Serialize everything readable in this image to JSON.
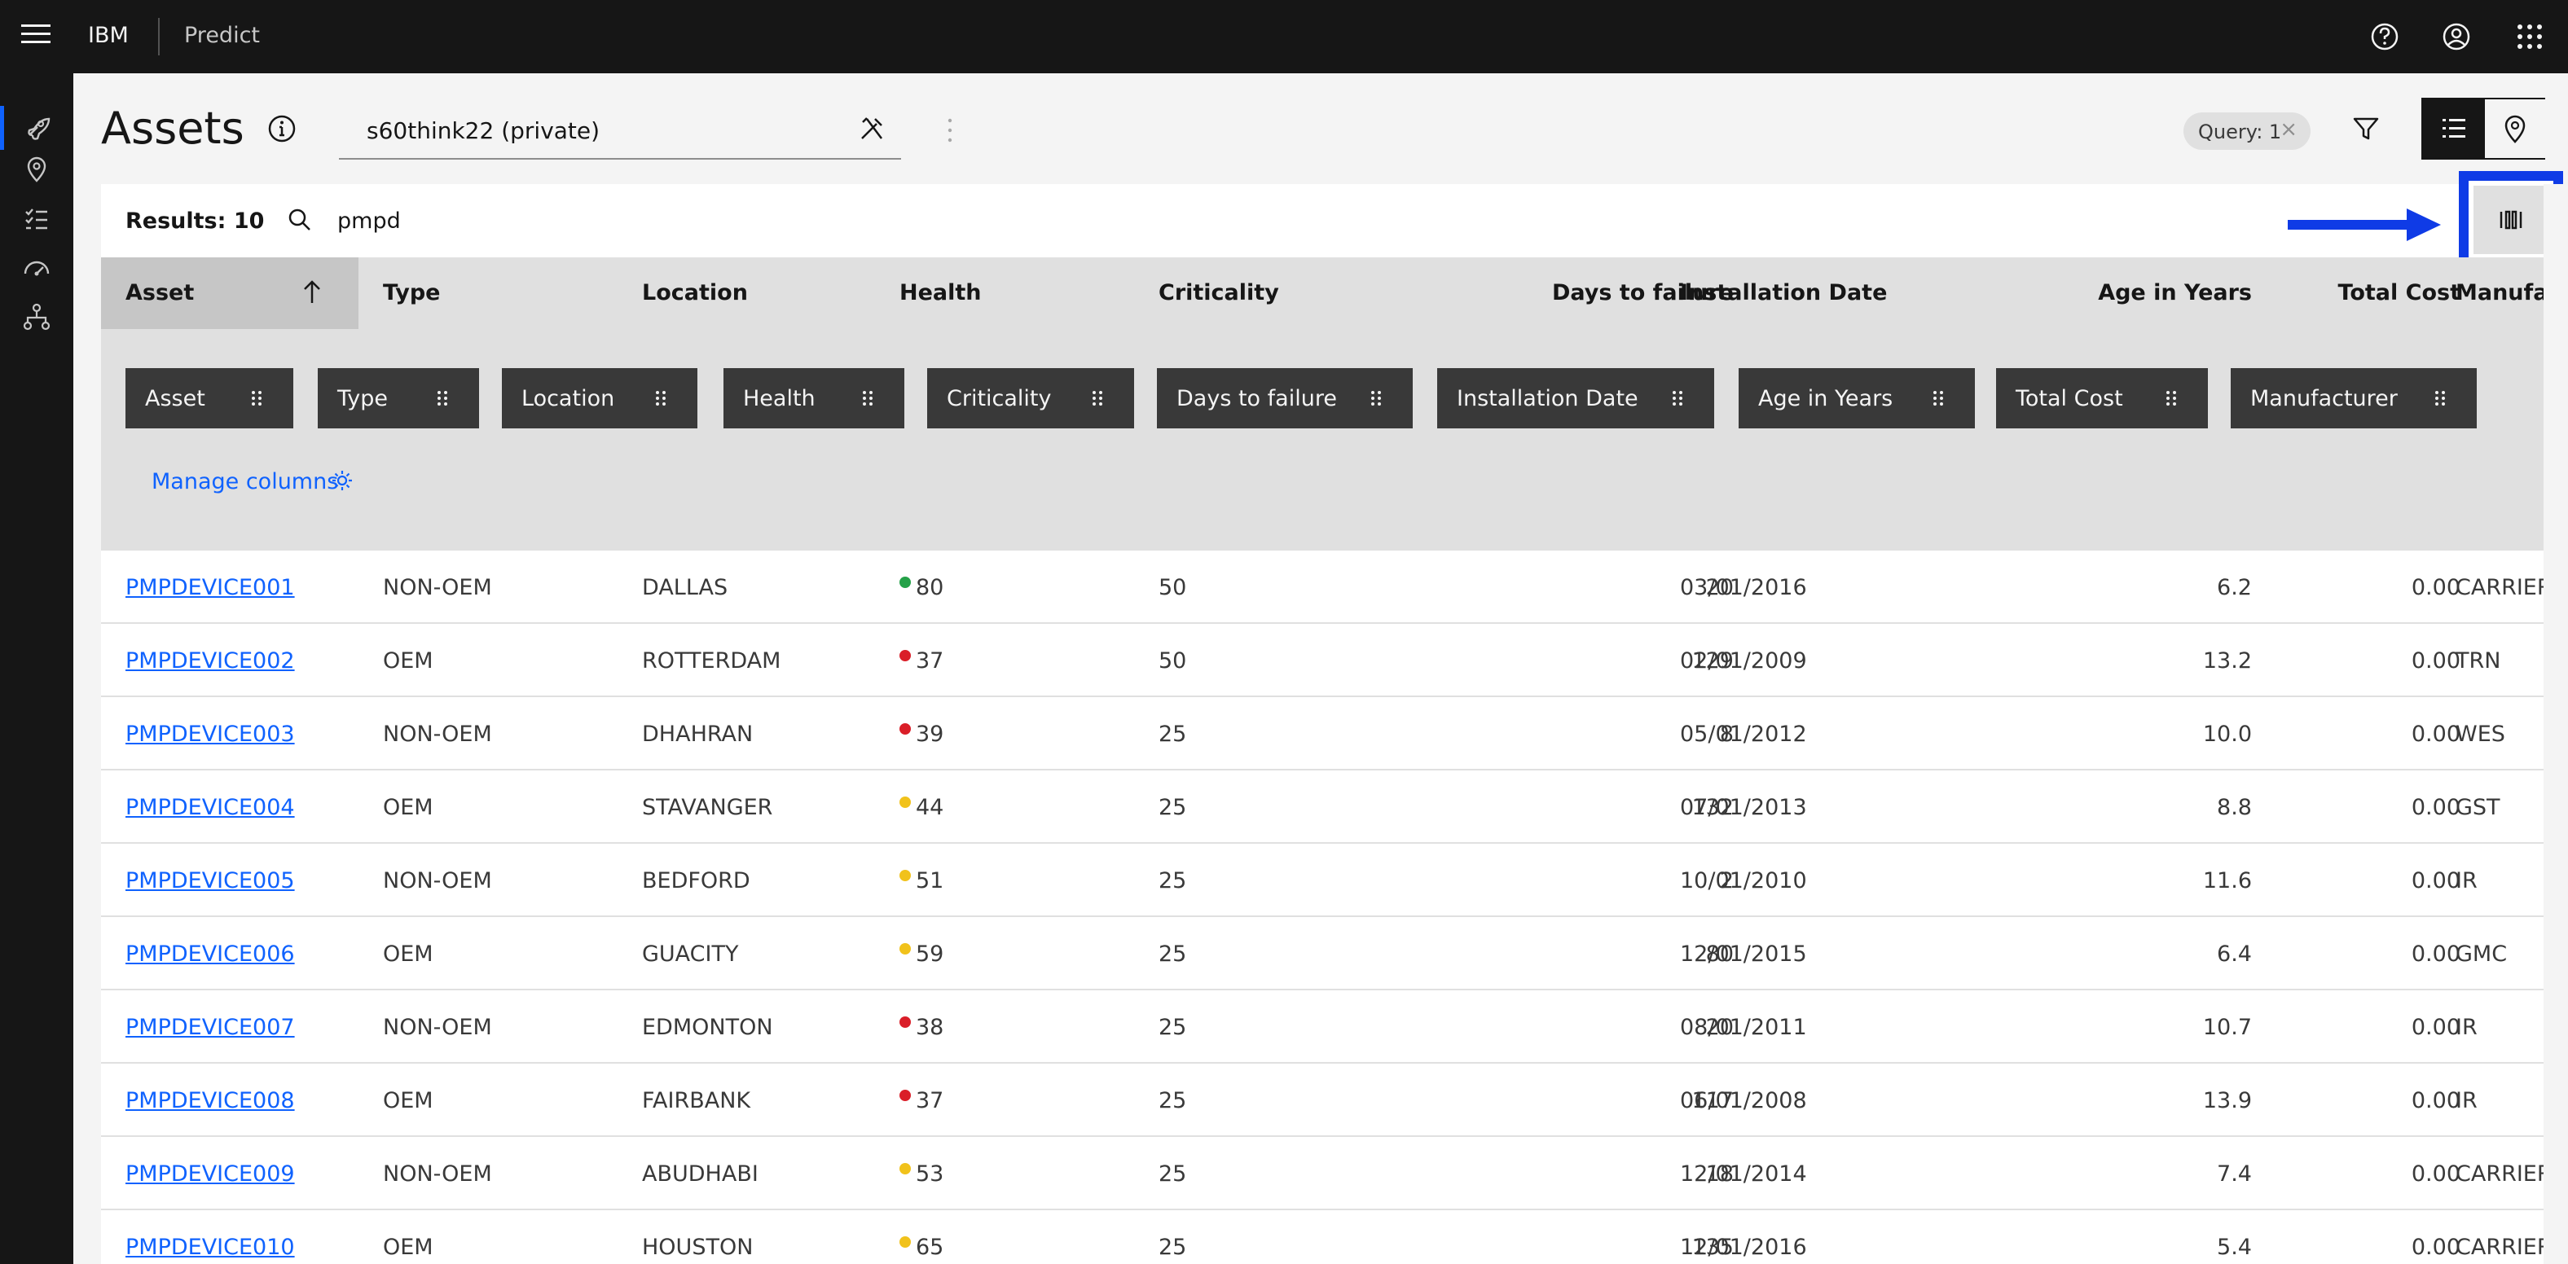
{
  "header": {
    "brand": "IBM",
    "product": "Predict",
    "icons": [
      "help-icon",
      "user-avatar-icon",
      "app-switcher-icon"
    ]
  },
  "rail": {
    "items": [
      "rocket-icon",
      "location-pin-icon",
      "task-checklist-icon",
      "dashboard-gauge-icon",
      "hierarchy-icon"
    ]
  },
  "page": {
    "title": "Assets",
    "query_value": "s60think22 (private)",
    "query_tag": "Query: 1",
    "query_tag_close": "×"
  },
  "toolbar": {
    "results": "Results: 10",
    "search_value": "pmpd"
  },
  "columns": [
    "Asset",
    "Type",
    "Location",
    "Health",
    "Criticality",
    "Days to failure",
    "Installation Date",
    "Age in Years",
    "Total Cost",
    "Manufact"
  ],
  "chips": [
    "Asset",
    "Type",
    "Location",
    "Health",
    "Criticality",
    "Days to failure",
    "Installation Date",
    "Age in Years",
    "Total Cost",
    "Manufacturer"
  ],
  "manage_columns": "Manage columns",
  "colors": {
    "good": "#24a148",
    "bad": "#da1e28",
    "warn": "#f1c21b",
    "accent": "#0f62fe",
    "highlight": "#0f3be6"
  },
  "rows": [
    {
      "asset": "PMPDEVICE001",
      "type": "NON-OEM",
      "location": "DALLAS",
      "health_status": "good",
      "health": "80",
      "criticality": "50",
      "days": "20",
      "install": "03/01/2016",
      "age": "6.2",
      "cost": "0.00",
      "mfr": "CARRIER"
    },
    {
      "asset": "PMPDEVICE002",
      "type": "OEM",
      "location": "ROTTERDAM",
      "health_status": "bad",
      "health": "37",
      "criticality": "50",
      "days": "129",
      "install": "02/01/2009",
      "age": "13.2",
      "cost": "0.00",
      "mfr": "TRN"
    },
    {
      "asset": "PMPDEVICE003",
      "type": "NON-OEM",
      "location": "DHAHRAN",
      "health_status": "bad",
      "health": "39",
      "criticality": "25",
      "days": "8",
      "install": "05/01/2012",
      "age": "10.0",
      "cost": "0.00",
      "mfr": "WES"
    },
    {
      "asset": "PMPDEVICE004",
      "type": "OEM",
      "location": "STAVANGER",
      "health_status": "warn",
      "health": "44",
      "criticality": "25",
      "days": "132",
      "install": "07/01/2013",
      "age": "8.8",
      "cost": "0.00",
      "mfr": "GST"
    },
    {
      "asset": "PMPDEVICE005",
      "type": "NON-OEM",
      "location": "BEDFORD",
      "health_status": "warn",
      "health": "51",
      "criticality": "25",
      "days": "2",
      "install": "10/01/2010",
      "age": "11.6",
      "cost": "0.00",
      "mfr": "IR"
    },
    {
      "asset": "PMPDEVICE006",
      "type": "OEM",
      "location": "GUACITY",
      "health_status": "warn",
      "health": "59",
      "criticality": "25",
      "days": "80",
      "install": "12/01/2015",
      "age": "6.4",
      "cost": "0.00",
      "mfr": "GMC"
    },
    {
      "asset": "PMPDEVICE007",
      "type": "NON-OEM",
      "location": "EDMONTON",
      "health_status": "bad",
      "health": "38",
      "criticality": "25",
      "days": "20",
      "install": "08/01/2011",
      "age": "10.7",
      "cost": "0.00",
      "mfr": "IR"
    },
    {
      "asset": "PMPDEVICE008",
      "type": "OEM",
      "location": "FAIRBANK",
      "health_status": "bad",
      "health": "37",
      "criticality": "25",
      "days": "117",
      "install": "06/01/2008",
      "age": "13.9",
      "cost": "0.00",
      "mfr": "IR"
    },
    {
      "asset": "PMPDEVICE009",
      "type": "NON-OEM",
      "location": "ABUDHABI",
      "health_status": "warn",
      "health": "53",
      "criticality": "25",
      "days": "18",
      "install": "12/01/2014",
      "age": "7.4",
      "cost": "0.00",
      "mfr": "CARRIER"
    },
    {
      "asset": "PMPDEVICE010",
      "type": "OEM",
      "location": "HOUSTON",
      "health_status": "warn",
      "health": "65",
      "criticality": "25",
      "days": "135",
      "install": "12/01/2016",
      "age": "5.4",
      "cost": "0.00",
      "mfr": "CARRIER"
    }
  ]
}
